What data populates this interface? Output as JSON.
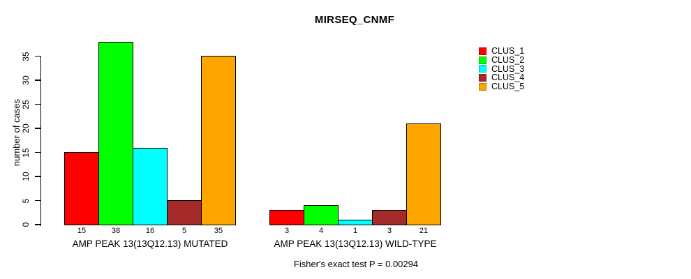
{
  "chart_data": {
    "type": "bar",
    "title": "MIRSEQ_CNMF",
    "ylabel": "number of cases",
    "xlabel": "",
    "caption": "Fisher's exact test P = 0.00294",
    "ylim": [
      0,
      38
    ],
    "yticks": [
      0,
      5,
      10,
      15,
      20,
      25,
      30,
      35
    ],
    "grid": false,
    "legend_position": "top-right",
    "bar_border_color": "#000000",
    "categories": [
      "AMP PEAK 13(13Q12.13) MUTATED",
      "AMP PEAK 13(13Q12.13) WILD-TYPE"
    ],
    "series": [
      {
        "name": "CLUS_1",
        "color": "#FF0000",
        "values": [
          15,
          3
        ]
      },
      {
        "name": "CLUS_2",
        "color": "#00FF00",
        "values": [
          38,
          4
        ]
      },
      {
        "name": "CLUS_3",
        "color": "#00FFFF",
        "values": [
          16,
          1
        ]
      },
      {
        "name": "CLUS_4",
        "color": "#A52A2A",
        "values": [
          5,
          3
        ]
      },
      {
        "name": "CLUS_5",
        "color": "#FFA500",
        "values": [
          35,
          21
        ]
      }
    ]
  }
}
